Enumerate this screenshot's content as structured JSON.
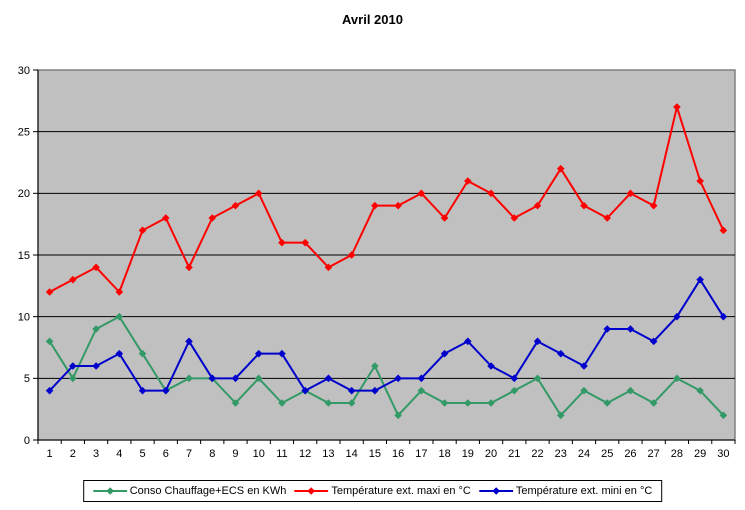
{
  "title": "Avril 2010",
  "colors": {
    "plot_background": "#c0c0c0",
    "plot_border": "#808080",
    "gridline": "#000000",
    "axis": "#000000",
    "page_background": "#ffffff",
    "series_conso": "#339966",
    "series_maxi": "#ff0000",
    "series_mini": "#0000cc"
  },
  "chart_data": {
    "type": "line",
    "title": "Avril 2010",
    "xlabel": "",
    "ylabel": "",
    "categories": [
      "1",
      "2",
      "3",
      "4",
      "5",
      "6",
      "7",
      "8",
      "9",
      "10",
      "11",
      "12",
      "13",
      "14",
      "15",
      "16",
      "17",
      "18",
      "19",
      "20",
      "21",
      "22",
      "23",
      "24",
      "25",
      "26",
      "27",
      "28",
      "29",
      "30"
    ],
    "ylim": [
      0,
      30
    ],
    "ytick_interval": 5,
    "ytick_labels": [
      "0",
      "5",
      "10",
      "15",
      "20",
      "25",
      "30"
    ],
    "grid": true,
    "plot_bg": "#c0c0c0",
    "legend_position": "bottom",
    "marker": "diamond",
    "series": [
      {
        "name": "Conso Chauffage+ECS en KWh",
        "color": "#339966",
        "values": [
          8,
          5,
          9,
          10,
          7,
          4,
          5,
          5,
          3,
          5,
          3,
          4,
          3,
          3,
          6,
          2,
          4,
          3,
          3,
          3,
          4,
          5,
          2,
          4,
          3,
          4,
          3,
          5,
          4,
          2
        ]
      },
      {
        "name": "Température ext. maxi en °C",
        "color": "#ff0000",
        "values": [
          12,
          13,
          14,
          12,
          17,
          18,
          14,
          18,
          19,
          20,
          16,
          16,
          14,
          15,
          19,
          19,
          20,
          18,
          21,
          20,
          18,
          19,
          22,
          19,
          18,
          20,
          19,
          27,
          21,
          17
        ]
      },
      {
        "name": "Température ext. mini en °C",
        "color": "#0000cc",
        "values": [
          4,
          6,
          6,
          7,
          4,
          4,
          8,
          5,
          5,
          7,
          7,
          4,
          5,
          4,
          4,
          5,
          5,
          7,
          8,
          6,
          5,
          8,
          7,
          6,
          9,
          9,
          8,
          10,
          13,
          10
        ]
      }
    ]
  }
}
